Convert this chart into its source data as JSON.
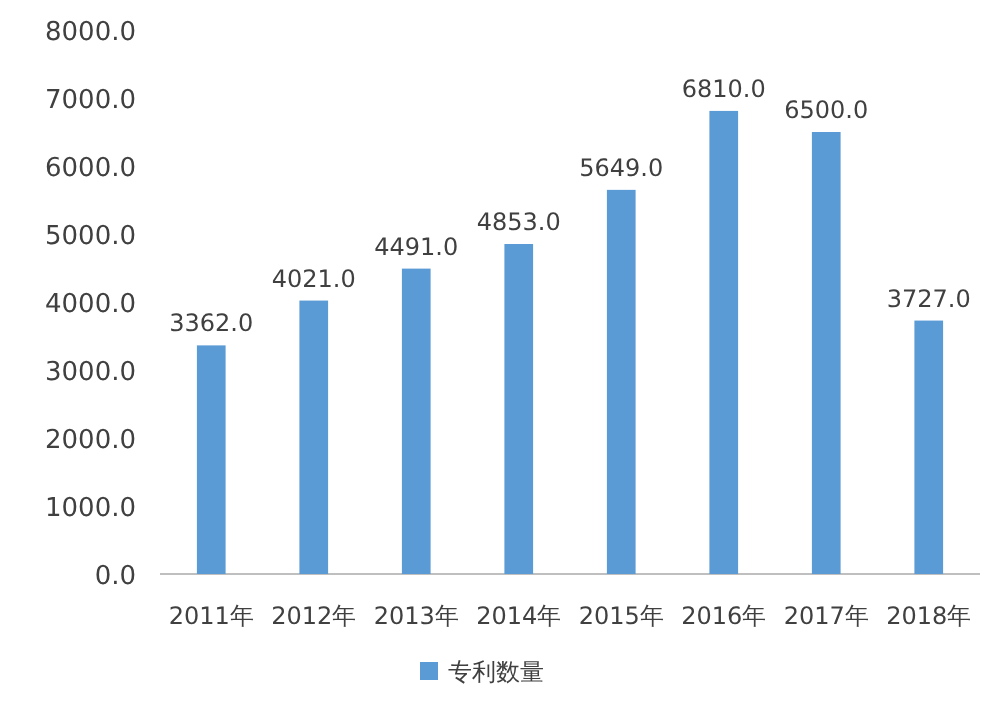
{
  "chart_data": {
    "type": "bar",
    "categories": [
      "2011年",
      "2012年",
      "2013年",
      "2014年",
      "2015年",
      "2016年",
      "2017年",
      "2018年"
    ],
    "series": [
      {
        "name": "专利数量",
        "color": "#5b9bd5",
        "values": [
          3362,
          4021,
          4491,
          4853,
          5649,
          6810,
          6500,
          3727
        ],
        "value_labels": [
          "3362.0",
          "4021.0",
          "4491.0",
          "4853.0",
          "5649.0",
          "6810.0",
          "6500.0",
          "3727.0"
        ]
      }
    ],
    "ylim": [
      0,
      8000
    ],
    "yticks": [
      {
        "value": 0,
        "label": "0.0"
      },
      {
        "value": 1000,
        "label": "1000.0"
      },
      {
        "value": 2000,
        "label": "2000.0"
      },
      {
        "value": 3000,
        "label": "3000.0"
      },
      {
        "value": 4000,
        "label": "4000.0"
      },
      {
        "value": 5000,
        "label": "5000.0"
      },
      {
        "value": 6000,
        "label": "6000.0"
      },
      {
        "value": 7000,
        "label": "7000.0"
      },
      {
        "value": 8000,
        "label": "8000.0"
      }
    ],
    "legend": "bottom"
  }
}
